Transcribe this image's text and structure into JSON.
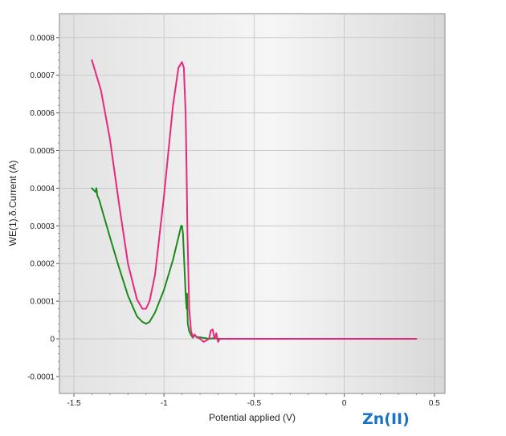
{
  "chart_data": {
    "type": "line",
    "title": "",
    "xlabel": "Potential applied (V)",
    "ylabel": "WE(1).δ.Current (A)",
    "xlim": [
      -1.55,
      0.55
    ],
    "ylim": [
      -0.00015,
      0.00085
    ],
    "x_ticks": [
      -1.5,
      -1,
      -0.5,
      0,
      0.5
    ],
    "x_tick_labels": [
      "-1.5",
      "-1",
      "-0.5",
      "0",
      "0.5"
    ],
    "y_ticks": [
      -0.0001,
      0,
      0.0001,
      0.0002,
      0.0003,
      0.0004,
      0.0005,
      0.0006,
      0.0007,
      0.0008
    ],
    "y_tick_labels": [
      "-0.0001",
      "0",
      "0.0001",
      "0.0002",
      "0.0003",
      "0.0004",
      "0.0005",
      "0.0006",
      "0.0007",
      "0.0008"
    ],
    "grid": true,
    "annotation": "Zn(II)",
    "series": [
      {
        "color": "#1a8a1a",
        "x": [
          -1.4,
          -1.38,
          -1.375,
          -1.37,
          -1.36,
          -1.33,
          -1.3,
          -1.25,
          -1.2,
          -1.15,
          -1.12,
          -1.1,
          -1.08,
          -1.05,
          -1.0,
          -0.95,
          -0.92,
          -0.905,
          -0.9,
          -0.895,
          -0.88,
          -0.875,
          -0.872,
          -0.87,
          -0.868,
          -0.86,
          -0.85,
          -0.84,
          -0.83,
          -0.82,
          -0.8,
          -0.75,
          -0.72,
          -0.7,
          -0.6,
          -0.4,
          -0.2,
          0.0,
          0.2,
          0.4
        ],
        "y": [
          0.0004,
          0.00039,
          0.0004,
          0.00038,
          0.00037,
          0.00032,
          0.00027,
          0.00019,
          0.000115,
          6e-05,
          4.5e-05,
          4e-05,
          4.5e-05,
          7e-05,
          0.00013,
          0.00021,
          0.00027,
          0.0003,
          0.0003,
          0.00028,
          0.00012,
          8e-05,
          0.00012,
          7e-05,
          4e-05,
          2e-05,
          1e-05,
          3e-06,
          1e-05,
          5e-06,
          4e-06,
          0.0,
          2e-06,
          0.0,
          0.0,
          0.0,
          0.0,
          0.0,
          0.0,
          0.0
        ]
      },
      {
        "color": "#e8287e",
        "x": [
          -1.4,
          -1.35,
          -1.3,
          -1.25,
          -1.2,
          -1.15,
          -1.12,
          -1.1,
          -1.08,
          -1.05,
          -1.0,
          -0.95,
          -0.92,
          -0.9,
          -0.89,
          -0.88,
          -0.875,
          -0.87,
          -0.86,
          -0.85,
          -0.84,
          -0.83,
          -0.82,
          -0.8,
          -0.78,
          -0.75,
          -0.74,
          -0.73,
          -0.72,
          -0.71,
          -0.7,
          -0.69,
          -0.6,
          -0.4,
          -0.2,
          0.0,
          0.2,
          0.4
        ],
        "y": [
          0.00074,
          0.00066,
          0.00053,
          0.00036,
          0.0002,
          0.000105,
          8e-05,
          8e-05,
          0.0001,
          0.00017,
          0.00038,
          0.00062,
          0.00072,
          0.000735,
          0.00072,
          0.0006,
          0.00045,
          0.00028,
          8e-05,
          2e-05,
          5e-06,
          1.2e-05,
          5e-06,
          0.0,
          -8e-06,
          0.0,
          2.2e-05,
          2.5e-05,
          0.0,
          1.5e-05,
          -8e-06,
          0.0,
          0.0,
          0.0,
          0.0,
          0.0,
          0.0,
          0.0
        ]
      }
    ]
  }
}
